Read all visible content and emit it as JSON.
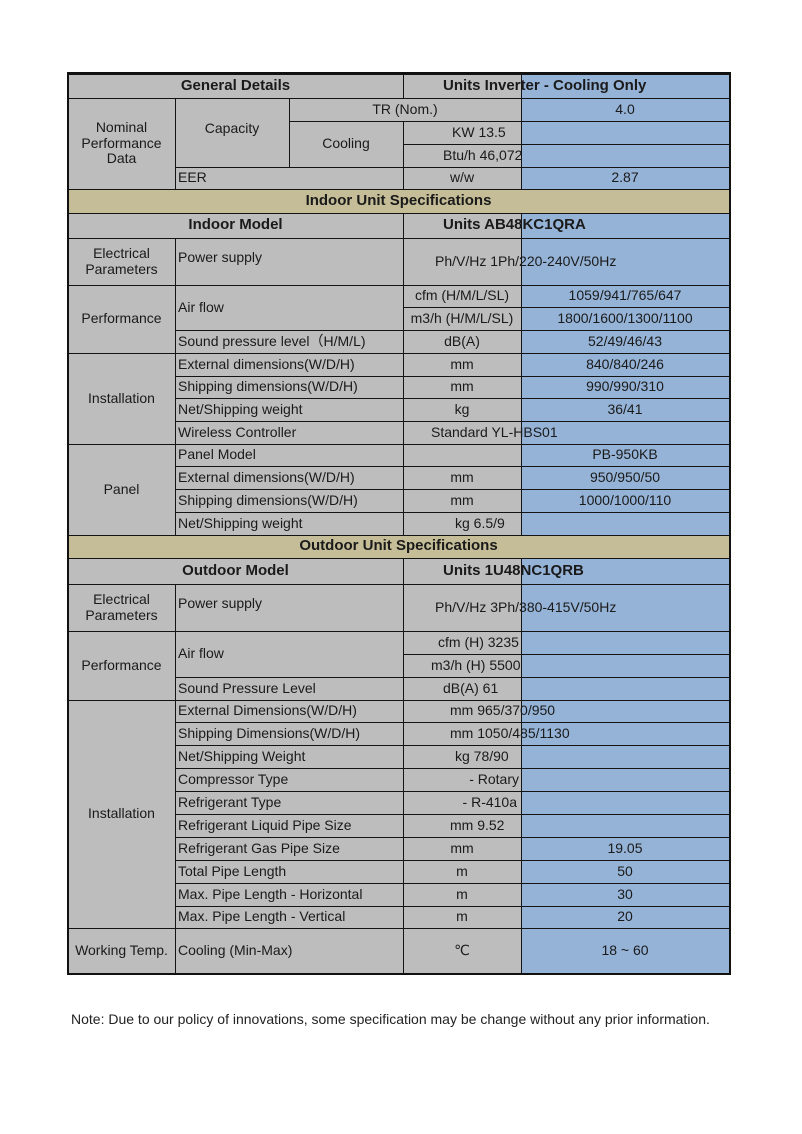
{
  "header": {
    "left": "General Details",
    "right": "Units Inverter - Cooling Only"
  },
  "nominal": {
    "group": "Nominal Performance Data",
    "capacity": "Capacity",
    "cooling": "Cooling",
    "tr_label": "TR (Nom.)",
    "tr_value": "4.0",
    "kw": "KW 13.5",
    "btu": "Btu/h 46,072",
    "eer_label": "EER",
    "eer_unit": "w/w",
    "eer_value": "2.87"
  },
  "indoor": {
    "section": "Indoor Unit Specifications",
    "model_label": "Indoor Model",
    "model_value": "Units AB48KC1QRA",
    "electrical": {
      "group": "Electrical Parameters",
      "label": "Power supply",
      "value": "Ph/V/Hz 1Ph/220-240V/50Hz"
    },
    "performance": {
      "group": "Performance",
      "airflow_label": "Air flow",
      "cfm_unit": "cfm (H/M/L/SL)",
      "cfm_value": "1059/941/765/647",
      "m3h_unit": "m3/h (H/M/L/SL)",
      "m3h_value": "1800/1600/1300/1100",
      "sound_label": "Sound pressure level（H/M/L)",
      "sound_unit": "dB(A)",
      "sound_value": "52/49/46/43"
    },
    "installation": {
      "group": "Installation",
      "rows": [
        {
          "label": "External dimensions(W/D/H)",
          "unit": "mm",
          "value": "840/840/246"
        },
        {
          "label": "Shipping dimensions(W/D/H)",
          "unit": "mm",
          "value": "990/990/310"
        },
        {
          "label": "Net/Shipping weight",
          "unit": "kg",
          "value": "36/41"
        },
        {
          "label": "Wireless Controller",
          "combined": "Standard YL-HBS01"
        }
      ]
    },
    "panel": {
      "group": "Panel",
      "rows": [
        {
          "label": "Panel Model",
          "unit": "",
          "value": "PB-950KB"
        },
        {
          "label": "External dimensions(W/D/H)",
          "unit": "mm",
          "value": "950/950/50"
        },
        {
          "label": "Shipping dimensions(W/D/H)",
          "unit": "mm",
          "value": "1000/1000/110"
        },
        {
          "label": "Net/Shipping weight",
          "combined": "kg 6.5/9"
        }
      ]
    }
  },
  "outdoor": {
    "section": "Outdoor Unit Specifications",
    "model_label": "Outdoor Model",
    "model_value": "Units 1U48NC1QRB",
    "electrical": {
      "group": "Electrical Parameters",
      "label": "Power supply",
      "value": "Ph/V/Hz 3Ph/380-415V/50Hz"
    },
    "performance": {
      "group": "Performance",
      "airflow_label": "Air flow",
      "cfm": "cfm (H) 3235",
      "m3h": "m3/h (H) 5500",
      "sound_label": "Sound Pressure Level",
      "sound": "dB(A) 61"
    },
    "installation": {
      "group": "Installation",
      "rows": [
        {
          "label": "External Dimensions(W/D/H)",
          "combined": "mm 965/370/950"
        },
        {
          "label": "Shipping Dimensions(W/D/H)",
          "combined": "mm 1050/485/1130"
        },
        {
          "label": "Net/Shipping Weight",
          "combined": "kg 78/90"
        },
        {
          "label": "Compressor Type",
          "combined": "-  Rotary"
        },
        {
          "label": "Refrigerant Type",
          "combined": "- R-410a"
        },
        {
          "label": "Refrigerant Liquid Pipe Size",
          "combined": "mm 9.52"
        },
        {
          "label": "Refrigerant Gas Pipe Size",
          "unit": "mm",
          "value": "19.05"
        },
        {
          "label": "Total Pipe Length",
          "unit": "m",
          "value": "50"
        },
        {
          "label": "Max. Pipe Length - Horizontal",
          "unit": "m",
          "value": "30"
        },
        {
          "label": "Max. Pipe Length - Vertical",
          "unit": "m",
          "value": "20"
        }
      ]
    },
    "working": {
      "group": "Working Temp.",
      "label": "Cooling (Min-Max)",
      "unit": "℃",
      "value": "18 ~ 60"
    }
  },
  "note": "Note: Due to our policy of innovations, some specification may be change without any prior information.",
  "colors": {
    "cell_grey": "#bdbdbd",
    "value_blue": "#95b3d7",
    "section_tan": "#c4bd97"
  }
}
